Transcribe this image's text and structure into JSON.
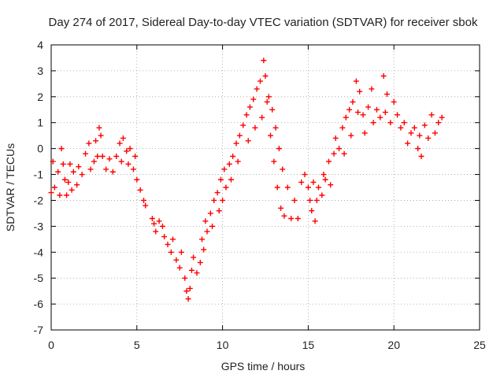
{
  "chart_data": {
    "type": "scatter",
    "title": "Day 274 of 2017, Sidereal Day-to-day VTEC variation (SDTVAR) for receiver sbok",
    "xlabel": "GPS time / hours",
    "ylabel": "SDTVAR / TECUs",
    "xlim": [
      0,
      25
    ],
    "ylim": [
      -7,
      4
    ],
    "xticks": [
      "0",
      "5",
      "10",
      "15",
      "20",
      "25"
    ],
    "yticks": [
      "-7",
      "-6",
      "-5",
      "-4",
      "-3",
      "-2",
      "-1",
      "0",
      "1",
      "2",
      "3",
      "4"
    ],
    "grid": true,
    "legend": "none",
    "marker": "plus",
    "color": "#ff0000",
    "series": [
      {
        "values": [
          [
            0.0,
            -1.7
          ],
          [
            0.1,
            -0.5
          ],
          [
            0.2,
            -1.5
          ],
          [
            0.4,
            -0.9
          ],
          [
            0.5,
            -1.8
          ],
          [
            0.6,
            0.0
          ],
          [
            0.7,
            -0.6
          ],
          [
            0.8,
            -1.2
          ],
          [
            0.9,
            -1.8
          ],
          [
            1.0,
            -1.3
          ],
          [
            1.1,
            -0.6
          ],
          [
            1.2,
            -1.6
          ],
          [
            1.3,
            -0.9
          ],
          [
            1.5,
            -1.4
          ],
          [
            1.6,
            -0.7
          ],
          [
            1.8,
            -1.0
          ],
          [
            2.0,
            -0.2
          ],
          [
            2.2,
            0.2
          ],
          [
            2.3,
            -0.8
          ],
          [
            2.5,
            -0.5
          ],
          [
            2.6,
            0.3
          ],
          [
            2.7,
            -0.3
          ],
          [
            2.8,
            0.8
          ],
          [
            2.9,
            0.5
          ],
          [
            3.0,
            -0.3
          ],
          [
            3.2,
            -0.8
          ],
          [
            3.4,
            -0.4
          ],
          [
            3.6,
            -0.9
          ],
          [
            3.8,
            -0.3
          ],
          [
            4.0,
            0.2
          ],
          [
            4.1,
            -0.5
          ],
          [
            4.2,
            0.4
          ],
          [
            4.4,
            -0.1
          ],
          [
            4.5,
            -0.6
          ],
          [
            4.6,
            0.0
          ],
          [
            4.8,
            -0.8
          ],
          [
            4.9,
            -0.3
          ],
          [
            5.0,
            -1.2
          ],
          [
            5.2,
            -1.6
          ],
          [
            5.4,
            -2.0
          ],
          [
            5.5,
            -2.2
          ],
          [
            5.9,
            -2.7
          ],
          [
            6.0,
            -2.9
          ],
          [
            6.1,
            -3.2
          ],
          [
            6.3,
            -2.8
          ],
          [
            6.5,
            -3.0
          ],
          [
            6.6,
            -3.4
          ],
          [
            6.8,
            -3.7
          ],
          [
            7.0,
            -4.0
          ],
          [
            7.1,
            -3.5
          ],
          [
            7.3,
            -4.3
          ],
          [
            7.5,
            -4.6
          ],
          [
            7.6,
            -4.0
          ],
          [
            7.8,
            -5.0
          ],
          [
            7.9,
            -5.5
          ],
          [
            8.0,
            -5.8
          ],
          [
            8.1,
            -5.4
          ],
          [
            8.2,
            -4.7
          ],
          [
            8.3,
            -4.2
          ],
          [
            8.5,
            -4.8
          ],
          [
            8.7,
            -4.4
          ],
          [
            8.8,
            -3.5
          ],
          [
            8.9,
            -3.9
          ],
          [
            9.0,
            -2.8
          ],
          [
            9.1,
            -3.2
          ],
          [
            9.3,
            -2.5
          ],
          [
            9.4,
            -3.0
          ],
          [
            9.5,
            -2.0
          ],
          [
            9.7,
            -1.7
          ],
          [
            9.8,
            -2.4
          ],
          [
            9.9,
            -1.2
          ],
          [
            10.0,
            -2.0
          ],
          [
            10.1,
            -0.8
          ],
          [
            10.2,
            -1.5
          ],
          [
            10.4,
            -0.6
          ],
          [
            10.5,
            -1.2
          ],
          [
            10.6,
            -0.3
          ],
          [
            10.8,
            0.2
          ],
          [
            10.9,
            -0.5
          ],
          [
            11.0,
            0.5
          ],
          [
            11.2,
            0.9
          ],
          [
            11.4,
            1.3
          ],
          [
            11.5,
            0.3
          ],
          [
            11.6,
            1.6
          ],
          [
            11.8,
            1.9
          ],
          [
            11.9,
            0.8
          ],
          [
            12.0,
            2.3
          ],
          [
            12.2,
            2.6
          ],
          [
            12.3,
            1.2
          ],
          [
            12.4,
            3.4
          ],
          [
            12.5,
            2.8
          ],
          [
            12.6,
            1.8
          ],
          [
            12.7,
            2.0
          ],
          [
            12.8,
            0.5
          ],
          [
            12.9,
            1.5
          ],
          [
            13.0,
            -0.5
          ],
          [
            13.1,
            0.8
          ],
          [
            13.2,
            -1.5
          ],
          [
            13.3,
            0.0
          ],
          [
            13.4,
            -2.3
          ],
          [
            13.5,
            -0.8
          ],
          [
            13.6,
            -2.6
          ],
          [
            13.8,
            -1.5
          ],
          [
            14.0,
            -2.7
          ],
          [
            14.2,
            -2.0
          ],
          [
            14.4,
            -2.7
          ],
          [
            14.6,
            -1.3
          ],
          [
            14.8,
            -1.0
          ],
          [
            15.0,
            -1.5
          ],
          [
            15.1,
            -2.0
          ],
          [
            15.2,
            -2.4
          ],
          [
            15.3,
            -1.3
          ],
          [
            15.4,
            -2.8
          ],
          [
            15.5,
            -2.0
          ],
          [
            15.6,
            -1.5
          ],
          [
            15.8,
            -1.8
          ],
          [
            15.9,
            -1.0
          ],
          [
            16.0,
            -1.2
          ],
          [
            16.2,
            -0.5
          ],
          [
            16.3,
            -1.4
          ],
          [
            16.5,
            -0.2
          ],
          [
            16.6,
            0.4
          ],
          [
            16.8,
            0.0
          ],
          [
            17.0,
            0.8
          ],
          [
            17.1,
            -0.2
          ],
          [
            17.2,
            1.2
          ],
          [
            17.4,
            1.5
          ],
          [
            17.5,
            0.5
          ],
          [
            17.6,
            1.8
          ],
          [
            17.8,
            2.6
          ],
          [
            17.9,
            1.4
          ],
          [
            18.0,
            2.2
          ],
          [
            18.2,
            1.3
          ],
          [
            18.3,
            0.6
          ],
          [
            18.5,
            1.6
          ],
          [
            18.7,
            2.3
          ],
          [
            18.8,
            1.0
          ],
          [
            19.0,
            1.5
          ],
          [
            19.2,
            1.2
          ],
          [
            19.4,
            2.8
          ],
          [
            19.5,
            1.4
          ],
          [
            19.6,
            2.1
          ],
          [
            19.8,
            1.0
          ],
          [
            20.0,
            1.8
          ],
          [
            20.2,
            1.3
          ],
          [
            20.4,
            0.8
          ],
          [
            20.6,
            1.0
          ],
          [
            20.8,
            0.2
          ],
          [
            21.0,
            0.6
          ],
          [
            21.2,
            0.8
          ],
          [
            21.4,
            0.0
          ],
          [
            21.5,
            0.5
          ],
          [
            21.6,
            -0.3
          ],
          [
            21.8,
            0.9
          ],
          [
            22.0,
            0.4
          ],
          [
            22.2,
            1.3
          ],
          [
            22.4,
            0.6
          ],
          [
            22.6,
            1.0
          ],
          [
            22.8,
            1.2
          ]
        ]
      }
    ]
  }
}
